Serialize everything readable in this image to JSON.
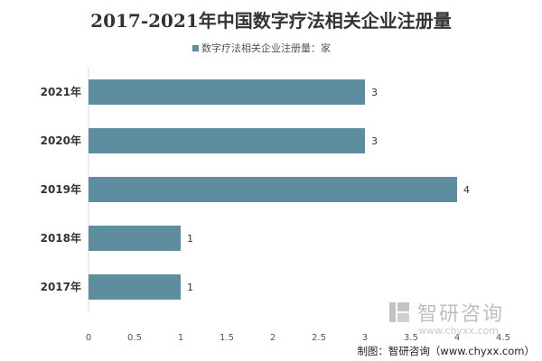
{
  "chart_data": {
    "type": "bar",
    "orientation": "horizontal",
    "title": "2017-2021年中国数字疗法相关企业注册量",
    "legend": [
      "数字疗法相关企业注册量：家"
    ],
    "categories": [
      "2021年",
      "2020年",
      "2019年",
      "2018年",
      "2017年"
    ],
    "series": [
      {
        "name": "数字疗法相关企业注册量：家",
        "values": [
          3,
          3,
          4,
          1,
          1
        ]
      }
    ],
    "data_labels": [
      "3",
      "3",
      "4",
      "1",
      "1"
    ],
    "xlim": [
      0,
      4.5
    ],
    "xticks": [
      0,
      0.5,
      1,
      1.5,
      2,
      2.5,
      3,
      3.5,
      4,
      4.5
    ],
    "xtick_labels": [
      "0",
      "0.5",
      "1",
      "1.5",
      "2",
      "2.5",
      "3",
      "3.5",
      "4",
      "4.5"
    ],
    "bar_color": "#5f8da0",
    "grid": false
  },
  "watermark": {
    "brand": "智研咨询",
    "url": "www.chyxx.com"
  },
  "credit": "制图：智研咨询（www.chyxx.com）"
}
